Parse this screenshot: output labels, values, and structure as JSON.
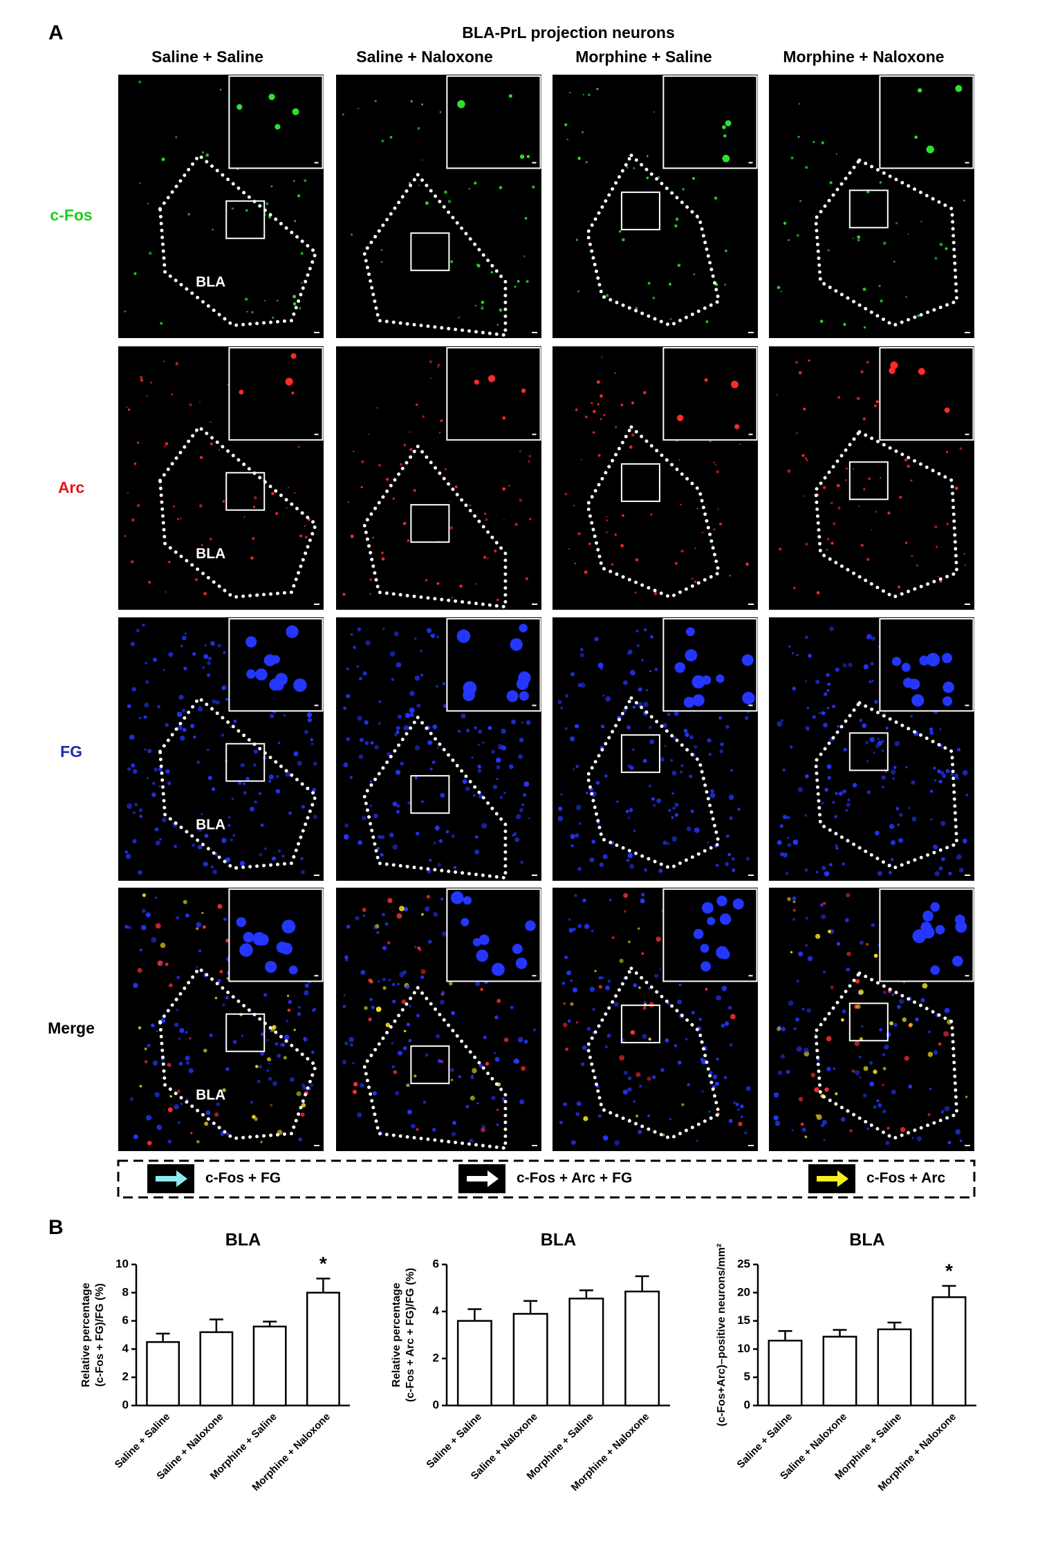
{
  "panel_a": {
    "label": "A",
    "title": "BLA-PrL projection neurons",
    "columns": [
      "Saline + Saline",
      "Saline + Naloxone",
      "Morphine + Saline",
      "Morphine + Naloxone"
    ],
    "rows": [
      "c-Fos",
      "Arc",
      "FG",
      "Merge"
    ],
    "region_label": "BLA",
    "legend": [
      "c-Fos + FG",
      "c-Fos + Arc + FG",
      "c-Fos + Arc"
    ]
  },
  "panel_b": {
    "label": "B"
  },
  "chart_data": [
    {
      "type": "bar",
      "title": "BLA",
      "ylabel": [
        "Relative percentage",
        "(c-Fos + FG)/FG (%)"
      ],
      "categories": [
        "Saline + Saline",
        "Saline + Naloxone",
        "Morphine + Saline",
        "Morphine + Naloxone"
      ],
      "values": [
        4.5,
        5.2,
        5.6,
        8.0
      ],
      "errors": [
        0.6,
        0.9,
        0.35,
        1.0
      ],
      "ylim": [
        0,
        10
      ],
      "yticks": [
        0,
        2,
        4,
        6,
        8,
        10
      ],
      "annotations": [
        {
          "category": "Morphine + Naloxone",
          "text": "*"
        }
      ]
    },
    {
      "type": "bar",
      "title": "BLA",
      "ylabel": [
        "Relative percentage",
        "(c-Fos + Arc + FG)/FG (%)"
      ],
      "categories": [
        "Saline + Saline",
        "Saline + Naloxone",
        "Morphine + Saline",
        "Morphine + Naloxone"
      ],
      "values": [
        3.6,
        3.9,
        4.55,
        4.85
      ],
      "errors": [
        0.5,
        0.55,
        0.35,
        0.65
      ],
      "ylim": [
        0,
        6
      ],
      "yticks": [
        0,
        2,
        4,
        6
      ]
    },
    {
      "type": "bar",
      "title": "BLA",
      "ylabel": [
        "(c-Fos+Arc)–positive neurons/mm²"
      ],
      "categories": [
        "Saline + Saline",
        "Saline + Naloxone",
        "Morphine + Saline",
        "Morphine + Naloxone"
      ],
      "values": [
        11.5,
        12.2,
        13.5,
        19.2
      ],
      "errors": [
        1.7,
        1.2,
        1.2,
        2.0
      ],
      "ylim": [
        0,
        25
      ],
      "yticks": [
        0,
        5,
        10,
        15,
        20,
        25
      ],
      "annotations": [
        {
          "category": "Morphine + Naloxone",
          "text": "*"
        }
      ]
    }
  ]
}
